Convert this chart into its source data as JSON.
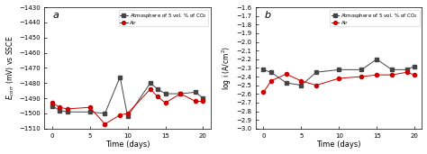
{
  "panel_a": {
    "label": "a",
    "xlabel": "Time (days)",
    "ylabel": "$E_{corr}$ (mV) vs SSCE",
    "ylim": [
      -1510,
      -1430
    ],
    "xlim": [
      -1,
      21
    ],
    "yticks": [
      -1510,
      -1500,
      -1490,
      -1480,
      -1470,
      -1460,
      -1450,
      -1440,
      -1430
    ],
    "xticks": [
      0,
      5,
      10,
      15,
      20
    ],
    "co2_x": [
      0,
      1,
      2,
      5,
      7,
      9,
      10,
      13,
      14,
      15,
      17,
      19,
      20
    ],
    "co2_y": [
      -1495,
      -1498,
      -1499,
      -1499,
      -1500,
      -1476,
      -1502,
      -1480,
      -1484,
      -1487,
      -1487,
      -1486,
      -1490
    ],
    "air_x": [
      0,
      1,
      2,
      5,
      7,
      9,
      10,
      13,
      14,
      15,
      17,
      19,
      20
    ],
    "air_y": [
      -1493,
      -1496,
      -1497,
      -1496,
      -1507,
      -1501,
      -1500,
      -1484,
      -1489,
      -1493,
      -1487,
      -1492,
      -1492
    ],
    "co2_color": "#444444",
    "air_color": "#cc0000",
    "legend_co2": "Atmosphere of 5 vol. % of CO$_2$",
    "legend_air": "Air"
  },
  "panel_b": {
    "label": "b",
    "xlabel": "Time (days)",
    "ylabel": "log i (A/cm$^2$)",
    "ylim": [
      -3.0,
      -1.6
    ],
    "xlim": [
      -1,
      21
    ],
    "yticks": [
      -3.0,
      -2.9,
      -2.8,
      -2.7,
      -2.6,
      -2.5,
      -2.4,
      -2.3,
      -2.2,
      -2.1,
      -2.0,
      -1.9,
      -1.8,
      -1.7,
      -1.6
    ],
    "xticks": [
      0,
      5,
      10,
      15,
      20
    ],
    "co2_x": [
      0,
      1,
      3,
      5,
      7,
      10,
      13,
      15,
      17,
      19,
      20
    ],
    "co2_y": [
      -2.32,
      -2.35,
      -2.47,
      -2.5,
      -2.35,
      -2.32,
      -2.32,
      -2.2,
      -2.32,
      -2.32,
      -2.28
    ],
    "air_x": [
      0,
      1,
      3,
      5,
      7,
      10,
      13,
      15,
      17,
      19,
      20
    ],
    "air_y": [
      -2.58,
      -2.45,
      -2.37,
      -2.45,
      -2.5,
      -2.42,
      -2.4,
      -2.38,
      -2.38,
      -2.35,
      -2.38
    ],
    "co2_color": "#444444",
    "air_color": "#cc0000",
    "legend_co2": "Atmosphere of 5 vol. % of CO$_2$",
    "legend_air": "Air"
  },
  "figure_bg": "#ffffff",
  "axes_bg": "#ffffff"
}
